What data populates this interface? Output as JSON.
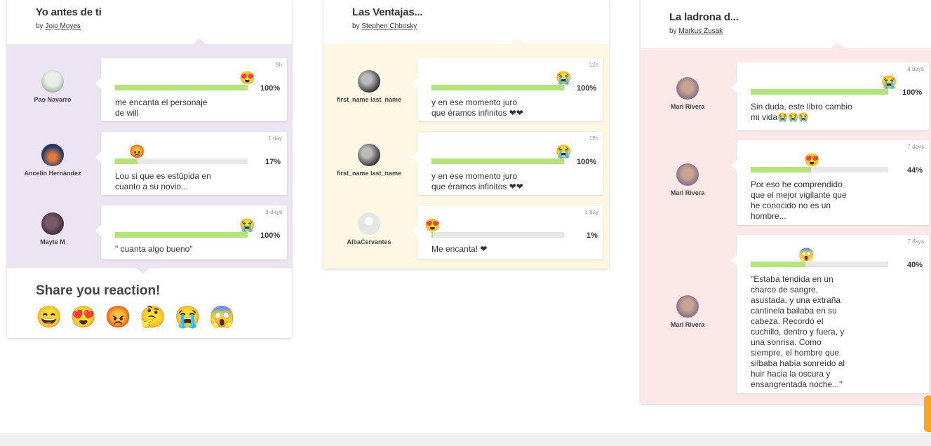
{
  "colors": {
    "purple_bg": "#ece4f3",
    "yellow_bg": "#fdf7e3",
    "pink_bg": "#fde8e8",
    "bar_fill": "#b5e27c",
    "bar_track": "#e8e8e8"
  },
  "cards": [
    {
      "title": "Yo antes de ti",
      "by": "by",
      "author": "Jojo Moyes",
      "reviews": [
        {
          "user": "Pao Navarro",
          "time": "9h",
          "emoji": "😍",
          "percent": "100%",
          "fill": 1.0,
          "comment_lines": [
            "me encanta el personaje",
            "de will"
          ]
        },
        {
          "user": "Ancelin Hernández",
          "time": "1 day",
          "emoji": "😡",
          "percent": "17%",
          "fill": 0.17,
          "comment_lines": [
            "Lou si que es estúpida en",
            "cuanto a su novio..."
          ]
        },
        {
          "user": "Mayte M",
          "time": "3 days",
          "emoji": "😭",
          "percent": "100%",
          "fill": 1.0,
          "comment_lines": [
            "\" cuanta algo bueno\""
          ]
        }
      ],
      "share_title": "Share you reaction!",
      "share_emojis": [
        "😄",
        "😍",
        "😡",
        "🤔",
        "😭",
        "😱"
      ]
    },
    {
      "title": "Las Ventajas...",
      "by": "by",
      "author": "Stephen Chbosky",
      "reviews": [
        {
          "user": "first_name last_name",
          "time": "12h",
          "emoji": "😭",
          "percent": "100%",
          "fill": 1.0,
          "comment_lines": [
            "y en ese momento juro",
            "que éramos infinitos ❤❤"
          ]
        },
        {
          "user": "first_name last_name",
          "time": "12h",
          "emoji": "😭",
          "percent": "100%",
          "fill": 1.0,
          "comment_lines": [
            "y en ese momento juro",
            "que éramos infinitos ❤❤"
          ]
        },
        {
          "user": "AlbaCervantes",
          "time": "1 day",
          "emoji": "😍",
          "percent": "1%",
          "fill": 0.01,
          "comment_lines": [
            "Me encanta! ❤"
          ]
        }
      ]
    },
    {
      "title": "La ladrona d...",
      "by": "by",
      "author": "Markus Zusak",
      "reviews": [
        {
          "user": "Mari Rivera",
          "time": "4 days",
          "emoji": "😭",
          "percent": "100%",
          "fill": 1.0,
          "comment_lines": [
            "Sin duda, este libro cambio",
            "mi vida😭😭😭"
          ]
        },
        {
          "user": "Mari Rivera",
          "time": "7 days",
          "emoji": "😍",
          "percent": "44%",
          "fill": 0.44,
          "comment_lines": [
            "Por eso he comprendido",
            "que el mejor vigilante que",
            "he conocido no es un",
            "hombre..."
          ]
        },
        {
          "user": "Mari Rivera",
          "time": "7 days",
          "emoji": "😱",
          "percent": "40%",
          "fill": 0.4,
          "comment_lines": [
            "\"Estaba tendida en un",
            "charco de sangre,",
            "asustada, y una extraña",
            "cantinela bailaba en su",
            "cabeza. Recordó el",
            "cuchillo, dentro y fuera, y",
            "una sonrisa. Como",
            "siempre, el hombre que",
            "silbaba había sonreído al",
            "huir hacia la oscura y",
            "ensangrentada noche...\""
          ]
        }
      ]
    }
  ]
}
